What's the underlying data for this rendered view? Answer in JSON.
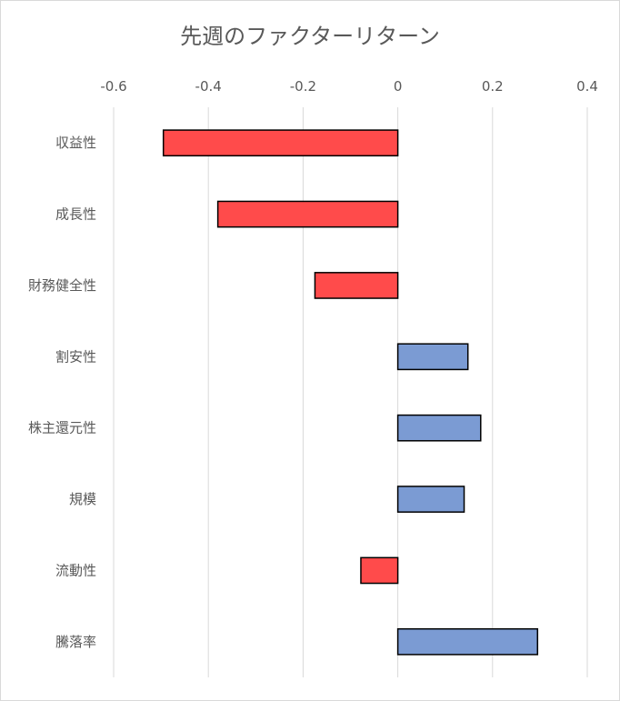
{
  "chart_data": {
    "type": "bar",
    "orientation": "horizontal",
    "title": "先週のファクターリターン",
    "xlabel": "",
    "ylabel": "",
    "xlim": [
      -0.6,
      0.4
    ],
    "x_ticks": [
      -0.6,
      -0.4,
      -0.2,
      0,
      0.2,
      0.4
    ],
    "x_tick_labels": [
      "-0.6",
      "-0.4",
      "-0.2",
      "0",
      "0.2",
      "0.4"
    ],
    "grid": true,
    "legend": "none",
    "categories": [
      "収益性",
      "成長性",
      "財務健全性",
      "割安性",
      "株主還元性",
      "規模",
      "流動性",
      "騰落率"
    ],
    "values": [
      -0.495,
      -0.38,
      -0.175,
      0.148,
      0.175,
      0.14,
      -0.078,
      0.295
    ],
    "colors": {
      "negative": "#ff4b4b",
      "positive": "#7b9bd3",
      "outline": "#000000",
      "grid": "#d9d9d9",
      "text": "#595959"
    }
  }
}
